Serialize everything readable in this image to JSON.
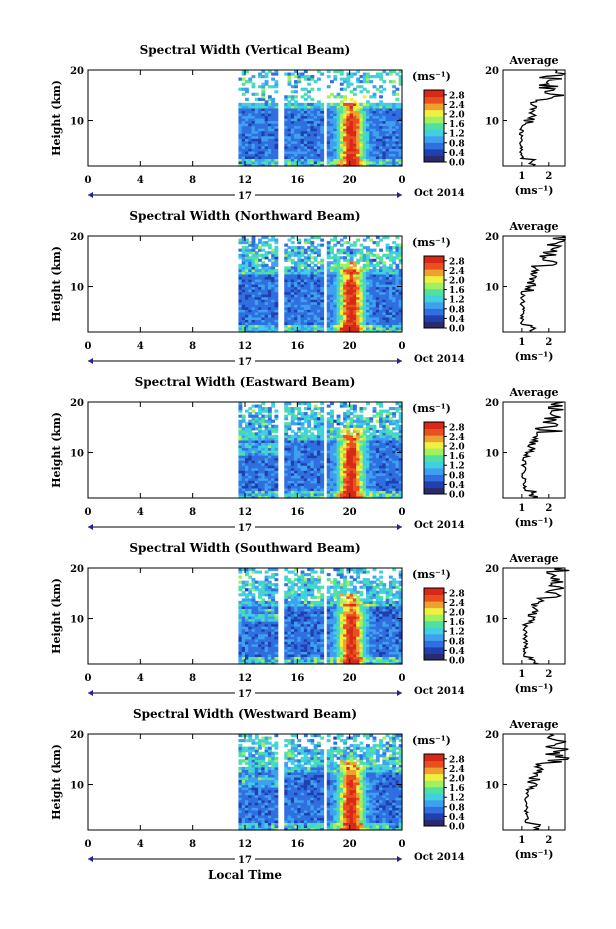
{
  "figure": {
    "x_axis_title": "Local Time",
    "date_label": "Oct 2014",
    "day_label": "17",
    "colorbar_unit": "(ms⁻¹)",
    "avg_unit": "(ms⁻¹)",
    "y_axis_title": "Height (km)",
    "avg_title": "Average",
    "colormap": [
      "#2a2a6e",
      "#2040b0",
      "#2f6fe0",
      "#3fa0f0",
      "#40d0e0",
      "#50e0a0",
      "#a0f060",
      "#f0f040",
      "#f0a030",
      "#e85020",
      "#d82818"
    ]
  },
  "chart_data": [
    {
      "type": "heatmap",
      "title": "Spectral Width (Vertical Beam)",
      "xlabel": "Local Time",
      "ylabel": "Height (km)",
      "x_ticks": [
        "0",
        "4",
        "8",
        "12",
        "16",
        "20",
        "0"
      ],
      "y_ticks": [
        "10",
        "20"
      ],
      "xlim": [
        0,
        24
      ],
      "ylim": [
        1,
        20
      ],
      "colorbar": {
        "ticks": [
          "0.0",
          "0.4",
          "0.8",
          "1.2",
          "1.6",
          "2.0",
          "2.4",
          "2.8"
        ],
        "range": [
          0,
          3.0
        ]
      },
      "data_start_hour": 11.5,
      "gap_hours": [
        [
          14.5,
          15.0
        ],
        [
          17.8,
          18.2
        ]
      ],
      "avg_profile": {
        "title": "Average",
        "x_ticks": [
          "1",
          "2"
        ],
        "xlim": [
          0.3,
          2.6
        ],
        "ylim": [
          1,
          20
        ]
      }
    },
    {
      "type": "heatmap",
      "title": "Spectral Width (Northward Beam)",
      "xlabel": "Local Time",
      "ylabel": "Height (km)",
      "x_ticks": [
        "0",
        "4",
        "8",
        "12",
        "16",
        "20",
        "0"
      ],
      "y_ticks": [
        "10",
        "20"
      ],
      "xlim": [
        0,
        24
      ],
      "ylim": [
        1,
        20
      ],
      "colorbar": {
        "ticks": [
          "0.0",
          "0.4",
          "0.8",
          "1.2",
          "1.6",
          "2.0",
          "2.4",
          "2.8"
        ],
        "range": [
          0,
          3.0
        ]
      },
      "data_start_hour": 11.5,
      "gap_hours": [
        [
          14.5,
          15.0
        ],
        [
          17.8,
          18.2
        ]
      ],
      "avg_profile": {
        "title": "Average",
        "x_ticks": [
          "1",
          "2"
        ],
        "xlim": [
          0.3,
          2.6
        ],
        "ylim": [
          1,
          20
        ]
      }
    },
    {
      "type": "heatmap",
      "title": "Spectral Width (Eastward Beam)",
      "xlabel": "Local Time",
      "ylabel": "Height (km)",
      "x_ticks": [
        "0",
        "4",
        "8",
        "12",
        "16",
        "20",
        "0"
      ],
      "y_ticks": [
        "10",
        "20"
      ],
      "xlim": [
        0,
        24
      ],
      "ylim": [
        1,
        20
      ],
      "colorbar": {
        "ticks": [
          "0.0",
          "0.4",
          "0.8",
          "1.2",
          "1.6",
          "2.0",
          "2.4",
          "2.8"
        ],
        "range": [
          0,
          3.0
        ]
      },
      "data_start_hour": 11.5,
      "gap_hours": [
        [
          14.5,
          15.0
        ],
        [
          17.8,
          18.2
        ]
      ],
      "avg_profile": {
        "title": "Average",
        "x_ticks": [
          "1",
          "2"
        ],
        "xlim": [
          0.3,
          2.6
        ],
        "ylim": [
          1,
          20
        ]
      }
    },
    {
      "type": "heatmap",
      "title": "Spectral Width (Southward Beam)",
      "xlabel": "Local Time",
      "ylabel": "Height (km)",
      "x_ticks": [
        "0",
        "4",
        "8",
        "12",
        "16",
        "20",
        "0"
      ],
      "y_ticks": [
        "10",
        "20"
      ],
      "xlim": [
        0,
        24
      ],
      "ylim": [
        1,
        20
      ],
      "colorbar": {
        "ticks": [
          "0.0",
          "0.4",
          "0.8",
          "1.2",
          "1.6",
          "2.0",
          "2.4",
          "2.8"
        ],
        "range": [
          0,
          3.0
        ]
      },
      "data_start_hour": 11.5,
      "gap_hours": [
        [
          14.5,
          15.0
        ],
        [
          17.8,
          18.2
        ]
      ],
      "avg_profile": {
        "title": "Average",
        "x_ticks": [
          "1",
          "2"
        ],
        "xlim": [
          0.3,
          2.6
        ],
        "ylim": [
          1,
          20
        ]
      }
    },
    {
      "type": "heatmap",
      "title": "Spectral Width (Westward Beam)",
      "xlabel": "Local Time",
      "ylabel": "Height (km)",
      "x_ticks": [
        "0",
        "4",
        "8",
        "12",
        "16",
        "20",
        "0"
      ],
      "y_ticks": [
        "10",
        "20"
      ],
      "xlim": [
        0,
        24
      ],
      "ylim": [
        1,
        20
      ],
      "colorbar": {
        "ticks": [
          "0.0",
          "0.4",
          "0.8",
          "1.2",
          "1.6",
          "2.0",
          "2.4",
          "2.8"
        ],
        "range": [
          0,
          3.0
        ]
      },
      "data_start_hour": 11.5,
      "gap_hours": [
        [
          14.5,
          15.0
        ],
        [
          17.8,
          18.2
        ]
      ],
      "avg_profile": {
        "title": "Average",
        "x_ticks": [
          "1",
          "2"
        ],
        "xlim": [
          0.3,
          2.6
        ],
        "ylim": [
          1,
          20
        ]
      }
    }
  ]
}
